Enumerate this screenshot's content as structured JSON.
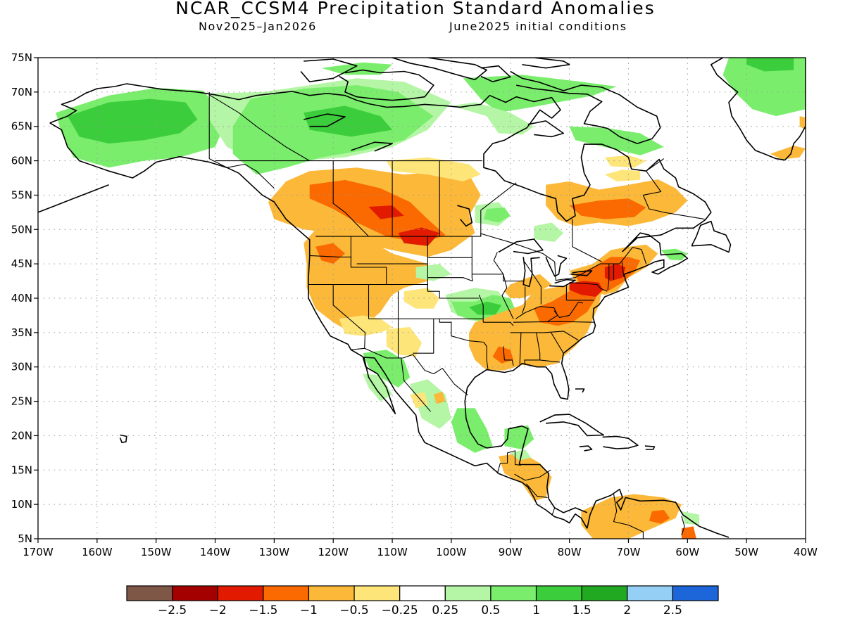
{
  "title": "NCAR_CCSM4 Precipitation Standard Anomalies",
  "subtitle_left": "Nov2025–Jan2026",
  "subtitle_right": "June2025 initial conditions",
  "map": {
    "projection": "lat-lon",
    "lon_range": [
      -170,
      -40
    ],
    "lat_range": [
      5,
      75
    ],
    "lon_ticks": [
      "170W",
      "160W",
      "150W",
      "140W",
      "130W",
      "120W",
      "110W",
      "100W",
      "90W",
      "80W",
      "70W",
      "60W",
      "50W",
      "40W"
    ],
    "lat_ticks": [
      "75N",
      "70N",
      "65N",
      "60N",
      "55N",
      "50N",
      "45N",
      "40N",
      "35N",
      "30N",
      "25N",
      "20N",
      "15N",
      "10N",
      "5N"
    ],
    "grid": "dotted"
  },
  "colorbar": {
    "colors": [
      "#7f5746",
      "#a40000",
      "#e21a00",
      "#fa6a00",
      "#fbb839",
      "#fde57a",
      "#ffffff",
      "#b4f6a5",
      "#7aee6c",
      "#3ccd3c",
      "#22a922",
      "#96cff5",
      "#1c66d9"
    ],
    "labels": [
      "−2.5",
      "−2",
      "−1.5",
      "−1",
      "−0.5",
      "−0.25",
      "0.25",
      "0.5",
      "1",
      "1.5",
      "2",
      "2.5"
    ]
  },
  "anomaly_regions": [
    {
      "name": "alaska-wet",
      "value": 1.5,
      "lon": -152,
      "lat": 65.5
    },
    {
      "name": "canada-north-wet",
      "value": 1,
      "lon": -115,
      "lat": 66
    },
    {
      "name": "greenland-wet",
      "value": 1,
      "lon": -47,
      "lat": 70
    },
    {
      "name": "canada-prairie-dry",
      "value": -1.5,
      "lon": -110,
      "lat": 52
    },
    {
      "name": "northeast-us-dry",
      "value": -1.5,
      "lon": -78,
      "lat": 43
    },
    {
      "name": "southeast-us-dry",
      "value": -1,
      "lon": -86,
      "lat": 33
    },
    {
      "name": "west-us-dry",
      "value": -1,
      "lon": -118,
      "lat": 41
    },
    {
      "name": "quebec-dry",
      "value": -1,
      "lon": -72,
      "lat": 52
    },
    {
      "name": "ozarks-wet",
      "value": 1.5,
      "lon": -93,
      "lat": 38
    },
    {
      "name": "mexico-wet",
      "value": 1,
      "lon": -103,
      "lat": 24
    },
    {
      "name": "venezuela-dry",
      "value": -0.5,
      "lon": -68,
      "lat": 8
    }
  ]
}
